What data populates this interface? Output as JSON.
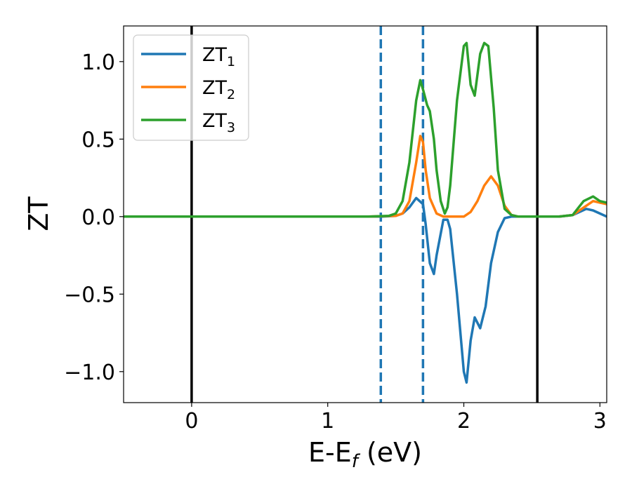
{
  "chart_data": {
    "type": "line",
    "xlabel": {
      "main": "E-E",
      "sub": "f",
      "unit": " (eV)"
    },
    "ylabel": "ZT",
    "xlim": [
      -0.5,
      3.05
    ],
    "ylim": [
      -1.2,
      1.23
    ],
    "xticks": [
      0,
      1,
      2,
      3
    ],
    "xtick_labels": [
      "0",
      "1",
      "2",
      "3"
    ],
    "yticks": [
      -1.0,
      -0.5,
      0.0,
      0.5,
      1.0
    ],
    "ytick_labels": [
      "−1.0",
      "−0.5",
      "0.0",
      "0.5",
      "1.0"
    ],
    "grid": false,
    "legend_position": "top-left",
    "series": [
      {
        "name": "ZT",
        "sub": "1",
        "color": "#1f77b4",
        "x": [
          -0.5,
          1.3,
          1.4,
          1.5,
          1.55,
          1.6,
          1.65,
          1.7,
          1.72,
          1.75,
          1.78,
          1.8,
          1.85,
          1.88,
          1.9,
          1.95,
          2.0,
          2.02,
          2.05,
          2.08,
          2.12,
          2.16,
          2.2,
          2.25,
          2.3,
          2.35,
          2.4,
          2.5,
          2.6,
          2.7,
          2.8,
          2.9,
          2.95,
          3.0,
          3.05
        ],
        "y": [
          0.0,
          0.0,
          0.0,
          0.005,
          0.02,
          0.06,
          0.12,
          0.08,
          -0.05,
          -0.3,
          -0.37,
          -0.25,
          -0.02,
          -0.02,
          -0.08,
          -0.5,
          -1.0,
          -1.07,
          -0.8,
          -0.65,
          -0.72,
          -0.58,
          -0.3,
          -0.1,
          -0.01,
          0.0,
          0.0,
          0.0,
          0.0,
          0.0,
          0.01,
          0.05,
          0.04,
          0.02,
          0.0
        ]
      },
      {
        "name": "ZT",
        "sub": "2",
        "color": "#ff7f0e",
        "x": [
          -0.5,
          1.3,
          1.5,
          1.55,
          1.6,
          1.65,
          1.68,
          1.7,
          1.72,
          1.75,
          1.8,
          1.85,
          1.9,
          2.0,
          2.05,
          2.1,
          2.15,
          2.2,
          2.25,
          2.3,
          2.35,
          2.4,
          2.5,
          2.6,
          2.7,
          2.8,
          2.9,
          2.95,
          3.0,
          3.05
        ],
        "y": [
          0.0,
          0.0,
          0.005,
          0.02,
          0.1,
          0.35,
          0.52,
          0.48,
          0.3,
          0.12,
          0.02,
          0.0,
          0.0,
          0.0,
          0.03,
          0.1,
          0.2,
          0.26,
          0.2,
          0.07,
          0.01,
          0.0,
          0.0,
          0.0,
          0.0,
          0.01,
          0.07,
          0.1,
          0.09,
          0.08
        ]
      },
      {
        "name": "ZT",
        "sub": "3",
        "color": "#2ca02c",
        "x": [
          -0.5,
          1.3,
          1.45,
          1.5,
          1.55,
          1.6,
          1.65,
          1.68,
          1.7,
          1.73,
          1.75,
          1.78,
          1.8,
          1.83,
          1.86,
          1.88,
          1.9,
          1.95,
          2.0,
          2.02,
          2.05,
          2.08,
          2.12,
          2.15,
          2.18,
          2.22,
          2.25,
          2.3,
          2.35,
          2.4,
          2.5,
          2.6,
          2.7,
          2.8,
          2.88,
          2.95,
          3.0,
          3.05
        ],
        "y": [
          0.0,
          0.0,
          0.005,
          0.02,
          0.1,
          0.35,
          0.75,
          0.88,
          0.82,
          0.72,
          0.68,
          0.5,
          0.3,
          0.1,
          0.02,
          0.06,
          0.2,
          0.75,
          1.1,
          1.12,
          0.85,
          0.78,
          1.05,
          1.12,
          1.1,
          0.7,
          0.3,
          0.05,
          0.01,
          0.0,
          0.0,
          0.0,
          0.0,
          0.01,
          0.1,
          0.13,
          0.1,
          0.09
        ]
      }
    ],
    "vlines": [
      {
        "x": 0.0,
        "style": "solid",
        "color": "#000000"
      },
      {
        "x": 2.54,
        "style": "solid",
        "color": "#000000"
      },
      {
        "x": 1.39,
        "style": "dashed",
        "color": "#1f77b4"
      },
      {
        "x": 1.7,
        "style": "dashed",
        "color": "#1f77b4"
      }
    ]
  }
}
